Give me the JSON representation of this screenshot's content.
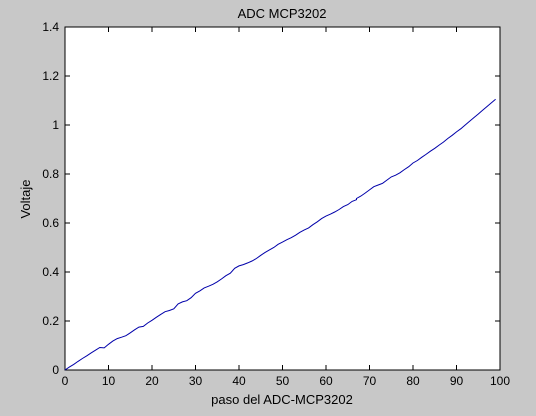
{
  "chart_data": {
    "type": "line",
    "title": "ADC MCP3202",
    "xlabel": "paso del ADC-MCP3202",
    "ylabel": "Voltaje",
    "xlim": [
      0,
      100
    ],
    "ylim": [
      0,
      1.4
    ],
    "xticks": [
      "0",
      "10",
      "20",
      "30",
      "40",
      "50",
      "60",
      "70",
      "80",
      "90",
      "100"
    ],
    "yticks": [
      "0",
      "0.2",
      "0.4",
      "0.6",
      "0.8",
      "1",
      "1.2",
      "1.4"
    ],
    "grid": false,
    "series_color": "#0000aa",
    "x": [
      0,
      1,
      2,
      3,
      4,
      5,
      6,
      7,
      8,
      9,
      10,
      11,
      12,
      13,
      14,
      15,
      16,
      17,
      18,
      19,
      20,
      21,
      22,
      23,
      24,
      25,
      26,
      27,
      28,
      29,
      30,
      31,
      32,
      33,
      34,
      35,
      36,
      37,
      38,
      39,
      40,
      41,
      42,
      43,
      44,
      45,
      46,
      47,
      48,
      49,
      50,
      51,
      52,
      53,
      54,
      55,
      56,
      57,
      58,
      59,
      60,
      61,
      62,
      63,
      64,
      65,
      66,
      67,
      67,
      68,
      69,
      70,
      71,
      72,
      73,
      74,
      75,
      76,
      77,
      78,
      79,
      80,
      81,
      82,
      83,
      84,
      85,
      86,
      87,
      88,
      89,
      90,
      91,
      92,
      93,
      94,
      95,
      96,
      97,
      98,
      99
    ],
    "y": [
      0,
      0.012,
      0.023,
      0.035,
      0.047,
      0.058,
      0.07,
      0.081,
      0.092,
      0.09,
      0.105,
      0.118,
      0.128,
      0.134,
      0.14,
      0.152,
      0.164,
      0.175,
      0.178,
      0.192,
      0.203,
      0.215,
      0.227,
      0.238,
      0.243,
      0.25,
      0.27,
      0.278,
      0.283,
      0.295,
      0.313,
      0.323,
      0.335,
      0.342,
      0.35,
      0.36,
      0.372,
      0.385,
      0.395,
      0.415,
      0.425,
      0.43,
      0.437,
      0.445,
      0.455,
      0.468,
      0.48,
      0.49,
      0.5,
      0.513,
      0.522,
      0.532,
      0.54,
      0.55,
      0.562,
      0.572,
      0.58,
      0.593,
      0.605,
      0.618,
      0.628,
      0.636,
      0.645,
      0.655,
      0.667,
      0.675,
      0.688,
      0.695,
      0.7,
      0.71,
      0.722,
      0.735,
      0.748,
      0.755,
      0.762,
      0.775,
      0.788,
      0.795,
      0.805,
      0.818,
      0.83,
      0.845,
      0.855,
      0.868,
      0.88,
      0.893,
      0.905,
      0.918,
      0.93,
      0.945,
      0.958,
      0.972,
      0.985,
      1.0,
      1.015,
      1.03,
      1.045,
      1.06,
      1.075,
      1.09,
      1.105
    ]
  }
}
